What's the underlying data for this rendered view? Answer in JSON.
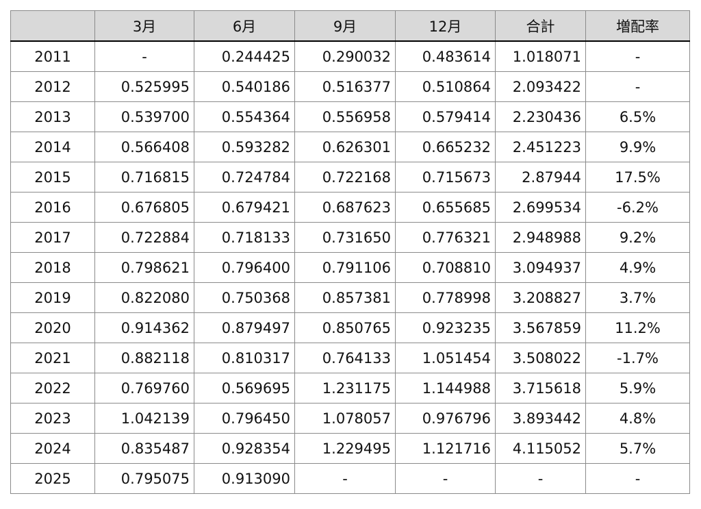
{
  "table": {
    "columns": [
      "",
      "3月",
      "6月",
      "9月",
      "12月",
      "合計",
      "増配率"
    ],
    "rows": [
      {
        "year": "2011",
        "cells": [
          "-",
          "0.244425",
          "0.290032",
          "0.483614",
          "1.018071",
          "-"
        ]
      },
      {
        "year": "2012",
        "cells": [
          "0.525995",
          "0.540186",
          "0.516377",
          "0.510864",
          "2.093422",
          "-"
        ]
      },
      {
        "year": "2013",
        "cells": [
          "0.539700",
          "0.554364",
          "0.556958",
          "0.579414",
          "2.230436",
          "6.5%"
        ]
      },
      {
        "year": "2014",
        "cells": [
          "0.566408",
          "0.593282",
          "0.626301",
          "0.665232",
          "2.451223",
          "9.9%"
        ]
      },
      {
        "year": "2015",
        "cells": [
          "0.716815",
          "0.724784",
          "0.722168",
          "0.715673",
          "2.87944",
          "17.5%"
        ]
      },
      {
        "year": "2016",
        "cells": [
          "0.676805",
          "0.679421",
          "0.687623",
          "0.655685",
          "2.699534",
          "-6.2%"
        ]
      },
      {
        "year": "2017",
        "cells": [
          "0.722884",
          "0.718133",
          "0.731650",
          "0.776321",
          "2.948988",
          "9.2%"
        ]
      },
      {
        "year": "2018",
        "cells": [
          "0.798621",
          "0.796400",
          "0.791106",
          "0.708810",
          "3.094937",
          "4.9%"
        ]
      },
      {
        "year": "2019",
        "cells": [
          "0.822080",
          "0.750368",
          "0.857381",
          "0.778998",
          "3.208827",
          "3.7%"
        ]
      },
      {
        "year": "2020",
        "cells": [
          "0.914362",
          "0.879497",
          "0.850765",
          "0.923235",
          "3.567859",
          "11.2%"
        ]
      },
      {
        "year": "2021",
        "cells": [
          "0.882118",
          "0.810317",
          "0.764133",
          "1.051454",
          "3.508022",
          "-1.7%"
        ]
      },
      {
        "year": "2022",
        "cells": [
          "0.769760",
          "0.569695",
          "1.231175",
          "1.144988",
          "3.715618",
          "5.9%"
        ]
      },
      {
        "year": "2023",
        "cells": [
          "1.042139",
          "0.796450",
          "1.078057",
          "0.976796",
          "3.893442",
          "4.8%"
        ]
      },
      {
        "year": "2024",
        "cells": [
          "0.835487",
          "0.928354",
          "1.229495",
          "1.121716",
          "4.115052",
          "5.7%"
        ]
      },
      {
        "year": "2025",
        "cells": [
          "0.795075",
          "0.913090",
          "-",
          "-",
          "-",
          "-"
        ]
      }
    ]
  },
  "colors": {
    "header_bg": "#d9d9d9",
    "grid_line": "#8a8a8a",
    "header_rule": "#000000"
  }
}
